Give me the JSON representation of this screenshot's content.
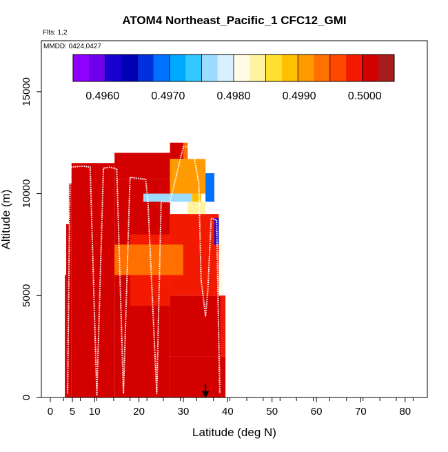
{
  "chart_data": {
    "type": "heatmap",
    "title": "ATOM4 Northeast_Pacific_1 CFC12_GMI",
    "flights_label": "Flts: 1,2",
    "dates_label": "MMDD: 0424,0427",
    "xlabel": "Latitude (deg N)",
    "ylabel": "Altitude (m)",
    "xlim": [
      -2,
      85
    ],
    "ylim": [
      0,
      17500
    ],
    "x_ticks": [
      0,
      5,
      10,
      20,
      30,
      40,
      50,
      60,
      70,
      80
    ],
    "x_tick_labels": [
      "0",
      "5",
      "10",
      "20",
      "30",
      "40",
      "50",
      "60",
      "70",
      "80"
    ],
    "x_minor_ticks": [
      3,
      6.8,
      10.5,
      14.3,
      18,
      21.8,
      25.5,
      29.3,
      33,
      36.8,
      40.5,
      44.3,
      48,
      51.8,
      55.5,
      59.3,
      63,
      66.8,
      70.5,
      74.3,
      78,
      81.8
    ],
    "y_ticks": [
      0,
      5000,
      10000,
      15000
    ],
    "y_tick_labels": [
      "0",
      "5000",
      "10000",
      "15000"
    ],
    "colorbar": {
      "labels": [
        {
          "value": 0.496,
          "text": "0.4960"
        },
        {
          "value": 0.497,
          "text": "0.4970"
        },
        {
          "value": 0.498,
          "text": "0.4980"
        },
        {
          "value": 0.499,
          "text": "0.4990"
        },
        {
          "value": 0.5,
          "text": "0.5000"
        }
      ],
      "range": [
        0.49555,
        0.50045
      ],
      "colors": [
        "#8f00ff",
        "#6f00ee",
        "#1800cf",
        "#0000b4",
        "#0030dd",
        "#0070ff",
        "#00a8ff",
        "#33c8ff",
        "#9bdcff",
        "#d8f0ff",
        "#fffbe6",
        "#fff3a0",
        "#ffe030",
        "#ffc000",
        "#ff9a00",
        "#ff7000",
        "#ff4800",
        "#f21a00",
        "#d30000",
        "#a81c1c"
      ]
    },
    "bottom_arrow_latitude": 35,
    "cells": [
      {
        "lat0": 3.3,
        "lat1": 3.6,
        "alt0": 0,
        "alt1": 6000,
        "v": 0.5002
      },
      {
        "lat0": 3.6,
        "lat1": 4.2,
        "alt0": 0,
        "alt1": 8500,
        "v": 0.5002
      },
      {
        "lat0": 4.2,
        "lat1": 4.8,
        "alt0": 0,
        "alt1": 10500,
        "v": 0.5002
      },
      {
        "lat0": 4.8,
        "lat1": 14.5,
        "alt0": 0,
        "alt1": 11500,
        "v": 0.5002
      },
      {
        "lat0": 14.5,
        "lat1": 24.5,
        "alt0": 0,
        "alt1": 10700,
        "v": 0.5002
      },
      {
        "lat0": 14.5,
        "lat1": 27,
        "alt0": 10700,
        "alt1": 12000,
        "v": 0.5002
      },
      {
        "lat0": 24.5,
        "lat1": 27,
        "alt0": 0,
        "alt1": 10700,
        "v": 0.5001
      },
      {
        "lat0": 27,
        "lat1": 30,
        "alt0": 11700,
        "alt1": 12500,
        "v": 0.5001
      },
      {
        "lat0": 27,
        "lat1": 38.5,
        "alt0": 0,
        "alt1": 2000,
        "v": 0.5002
      },
      {
        "lat0": 27,
        "lat1": 38.5,
        "alt0": 2000,
        "alt1": 5000,
        "v": 0.5
      },
      {
        "lat0": 27,
        "lat1": 38,
        "alt0": 5000,
        "alt1": 9000,
        "v": 0.4998
      },
      {
        "lat0": 18,
        "lat1": 27,
        "alt0": 4500,
        "alt1": 8000,
        "v": 0.4999
      },
      {
        "lat0": 21,
        "lat1": 32,
        "alt0": 9600,
        "alt1": 10000,
        "v": 0.4976
      },
      {
        "lat0": 32,
        "lat1": 34,
        "alt0": 9600,
        "alt1": 10000,
        "v": 0.4989
      },
      {
        "lat0": 27,
        "lat1": 35,
        "alt0": 10000,
        "alt1": 11700,
        "v": 0.4992
      },
      {
        "lat0": 31,
        "lat1": 35,
        "alt0": 9000,
        "alt1": 9600,
        "v": 0.4983
      },
      {
        "lat0": 30,
        "lat1": 31,
        "alt0": 11700,
        "alt1": 12500,
        "v": 0.4994
      },
      {
        "lat0": 35,
        "lat1": 37,
        "alt0": 9600,
        "alt1": 11000,
        "v": 0.4968
      },
      {
        "lat0": 37,
        "lat1": 38,
        "alt0": 7500,
        "alt1": 8800,
        "v": 0.4962
      },
      {
        "lat0": 38,
        "lat1": 38.8,
        "alt0": 5000,
        "alt1": 8500,
        "v": 0.4981
      },
      {
        "lat0": 38.5,
        "lat1": 39.5,
        "alt0": 2000,
        "alt1": 5000,
        "v": 0.4999
      },
      {
        "lat0": 38.5,
        "lat1": 39.5,
        "alt0": 0,
        "alt1": 2000,
        "v": 0.5002
      },
      {
        "lat0": 14.5,
        "lat1": 30,
        "alt0": 6000,
        "alt1": 7500,
        "v": 0.4993
      }
    ],
    "flight_track": [
      [
        3.9,
        200
      ],
      [
        4.5,
        11300
      ],
      [
        7.5,
        11350
      ],
      [
        9,
        11300
      ],
      [
        10.5,
        100
      ],
      [
        12,
        11250
      ],
      [
        13.5,
        11300
      ],
      [
        15,
        11200
      ],
      [
        16.5,
        200
      ],
      [
        18,
        10800
      ],
      [
        21.5,
        10700
      ],
      [
        22,
        9700
      ],
      [
        24,
        200
      ],
      [
        25,
        9600
      ],
      [
        27,
        9600
      ],
      [
        30,
        12300
      ],
      [
        32,
        12300
      ],
      [
        33.5,
        10500
      ],
      [
        34,
        5800
      ],
      [
        35,
        4000
      ],
      [
        35.5,
        5200
      ],
      [
        36.3,
        8800
      ],
      [
        37.5,
        8700
      ],
      [
        38.2,
        200
      ]
    ]
  }
}
